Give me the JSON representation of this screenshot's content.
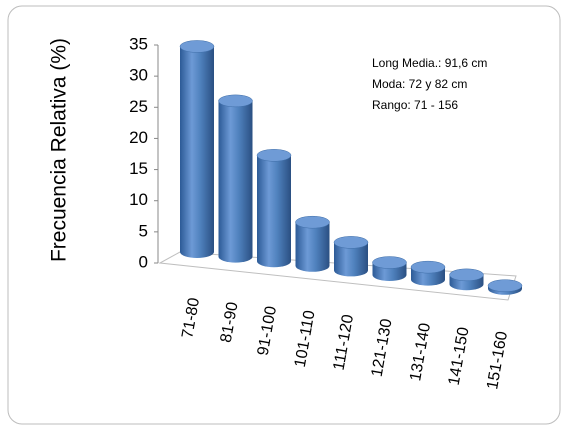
{
  "chart_data": {
    "type": "bar",
    "y_label": "Frecuencia Relativa (%)",
    "annotations": [
      "Long Media.: 91,6 cm",
      "Moda: 72 y 82 cm",
      "Rango: 71 - 156"
    ],
    "categories": [
      "71-80",
      "81-90",
      "91-100",
      "101-110",
      "111-120",
      "121-130",
      "131-140",
      "141-150",
      "151-160"
    ],
    "values": [
      33,
      25,
      17,
      7,
      4.5,
      2,
      2,
      1.5,
      0.5
    ],
    "color": "#4f81bd",
    "ylim": [
      0,
      35
    ],
    "yticks": [
      0,
      5,
      10,
      15,
      20,
      25,
      30,
      35
    ],
    "grid": false
  }
}
